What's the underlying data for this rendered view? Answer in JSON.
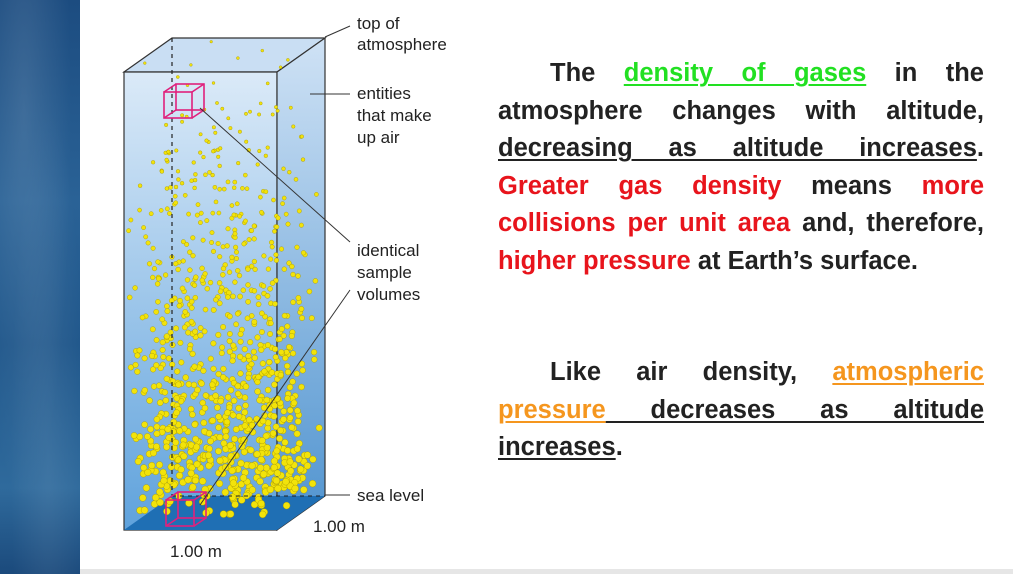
{
  "diagram": {
    "labels": {
      "top": [
        "top of",
        "atmosphere"
      ],
      "entities": [
        "entities",
        "that make",
        "up air"
      ],
      "sample": [
        "identical",
        "sample",
        "volumes"
      ],
      "sea_level": "sea level",
      "depth": "1.00 m",
      "width": "1.00 m"
    },
    "colors": {
      "column_top": "#dbeaf8",
      "column_bottom": "#5fa2dc",
      "particle": "#f2e30a",
      "sea": "#1f6fb4",
      "sample_box": "#e0207c"
    }
  },
  "paragraph1": {
    "t1": "The ",
    "t2": "density of gases",
    "t3": " in the atmosphere changes with altitude, ",
    "t4": "decreasing as altitude increases",
    "t5": ". ",
    "t6": "Greater gas density",
    "t7": " means ",
    "t8": "more collisions per unit area",
    "t9": " and, therefore, ",
    "t10": "higher pressure",
    "t11": " at Earth’s surface."
  },
  "paragraph2": {
    "t1": "Like air density, ",
    "t2": "atmospheric pressure",
    "t3": " decreases as altitude increases",
    "t4": "."
  }
}
